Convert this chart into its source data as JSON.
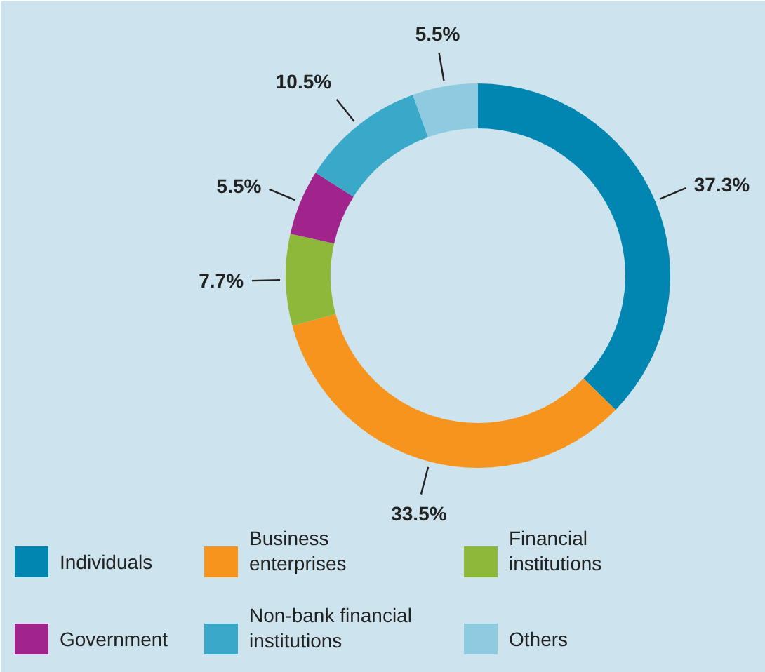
{
  "chart_data": {
    "type": "donut",
    "categories": [
      "Individuals",
      "Business enterprises",
      "Financial institutions",
      "Government",
      "Non-bank financial institutions",
      "Others"
    ],
    "values": [
      37.3,
      33.5,
      7.7,
      5.5,
      10.5,
      5.5
    ],
    "colors": [
      "#0086b0",
      "#f7941d",
      "#8db83a",
      "#a0248c",
      "#3aa9c9",
      "#8ecae0"
    ],
    "value_labels": [
      "37.3%",
      "33.5%",
      "7.7%",
      "5.5%",
      "10.5%",
      "5.5%"
    ],
    "legend": "bottom"
  }
}
